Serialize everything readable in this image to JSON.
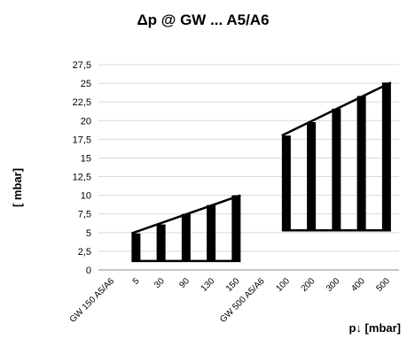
{
  "chart_data": {
    "type": "bar",
    "title": "Δp @ GW ... A5/A6",
    "xlabel": "p↓ [mbar]",
    "ylabel": "[ mbar]",
    "ylim": [
      0,
      27.5
    ],
    "yticks": [
      "0",
      "2,5",
      "5",
      "7,5",
      "10",
      "12,5",
      "15",
      "17,5",
      "20",
      "22,5",
      "25",
      "27,5"
    ],
    "grid": "horizontal",
    "categories": [
      "GW 150 A5/A6",
      "5",
      "30",
      "90",
      "130",
      "150",
      "GW 500 A5/A6",
      "100",
      "200",
      "300",
      "400",
      "500"
    ],
    "series": [
      {
        "values": [
          null,
          4.9,
          6.1,
          7.5,
          8.7,
          10.0,
          null,
          18.0,
          19.8,
          21.6,
          23.3,
          25.1
        ]
      }
    ],
    "range_lower": [
      null,
      1.2,
      1.2,
      1.2,
      1.2,
      1.2,
      null,
      5.3,
      5.3,
      5.3,
      5.3,
      5.3
    ]
  }
}
